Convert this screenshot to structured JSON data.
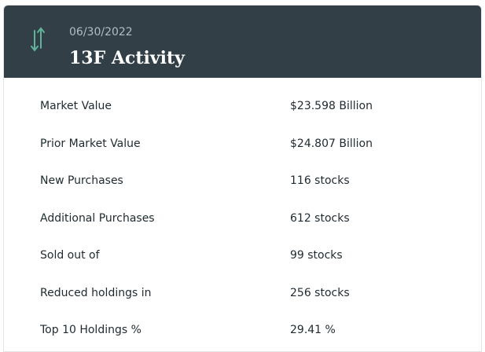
{
  "header": {
    "date": "06/30/2022",
    "title": "13F Activity"
  },
  "table": {
    "rows": [
      [
        "Market Value",
        "$23.598 Billion"
      ],
      [
        "Prior Market Value",
        "$24.807 Billion"
      ],
      [
        "New Purchases",
        "116 stocks"
      ],
      [
        "Additional Purchases",
        "612 stocks"
      ],
      [
        "Sold out of",
        "99 stocks"
      ],
      [
        "Reduced holdings in",
        "256 stocks"
      ],
      [
        "Top 10 Holdings %",
        "29.41 %"
      ]
    ]
  }
}
